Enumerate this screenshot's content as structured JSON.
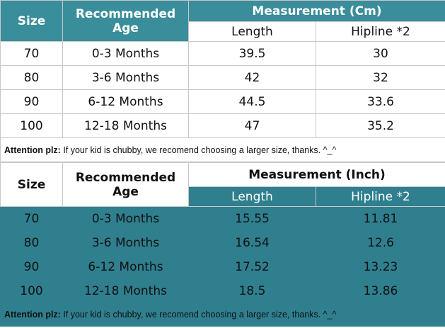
{
  "tables": [
    {
      "headers": {
        "size": "Size",
        "age": "Recommended Age",
        "measurement": "Measurement (Cm)",
        "length": "Length",
        "hipline": "Hipline *2"
      },
      "rows": [
        {
          "size": "70",
          "age": "0-3 Months",
          "length": "39.5",
          "hipline": "30"
        },
        {
          "size": "80",
          "age": "3-6 Months",
          "length": "42",
          "hipline": "32"
        },
        {
          "size": "90",
          "age": "6-12 Months",
          "length": "44.5",
          "hipline": "33.6"
        },
        {
          "size": "100",
          "age": "12-18 Months",
          "length": "47",
          "hipline": "35.2"
        }
      ],
      "note": {
        "label": "Attention plz:",
        "text": " If your kid is chubby, we recomend choosing a larger size, thanks. ^_^"
      }
    },
    {
      "headers": {
        "size": "Size",
        "age": "Recommended Age",
        "measurement": "Measurement (Inch)",
        "length": "Length",
        "hipline": "Hipline *2"
      },
      "rows": [
        {
          "size": "70",
          "age": "0-3 Months",
          "length": "15.55",
          "hipline": "11.81"
        },
        {
          "size": "80",
          "age": "3-6 Months",
          "length": "16.54",
          "hipline": "12.6"
        },
        {
          "size": "90",
          "age": "6-12 Months",
          "length": "17.52",
          "hipline": "13.23"
        },
        {
          "size": "100",
          "age": "12-18 Months",
          "length": "18.5",
          "hipline": "13.86"
        }
      ],
      "note": {
        "label": "Attention plz:",
        "text": " If your kid is chubby, we recomend choosing a larger size, thanks. ^_^"
      }
    }
  ],
  "colors": {
    "teal_header": "#3a8d9b",
    "teal_body": "#2f7f8f",
    "grid": "#c8c8c8"
  }
}
